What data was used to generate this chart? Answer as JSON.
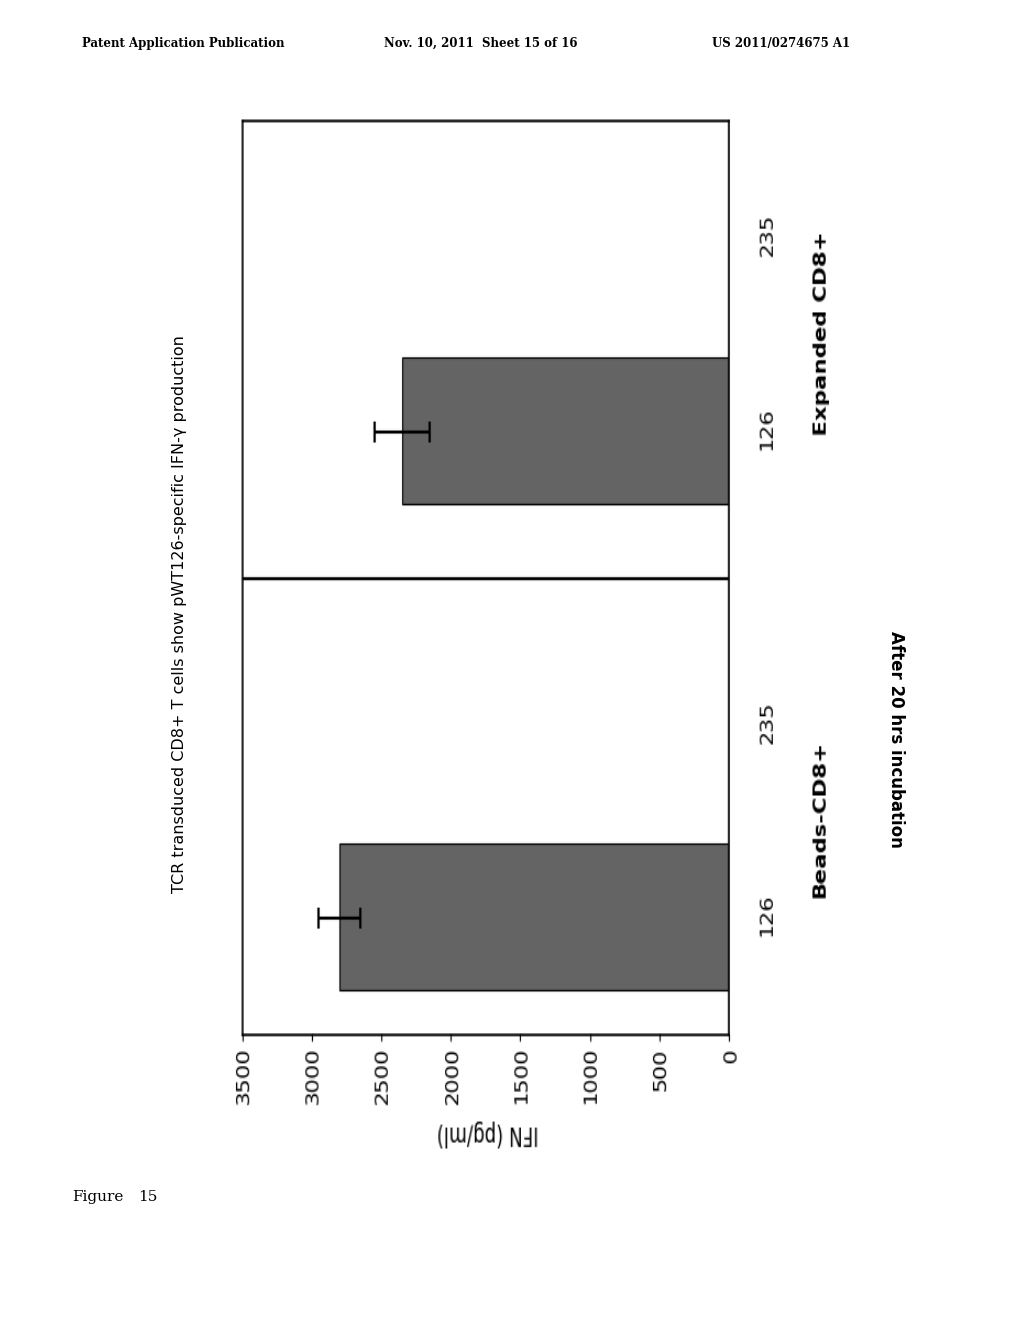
{
  "patent_header_left": "Patent Application Publication",
  "patent_header_mid": "Nov. 10, 2011  Sheet 15 of 16",
  "patent_header_right": "US 2011/0274675 A1",
  "figure_label": "Figure",
  "figure_num": "15",
  "title": "TCR transduced CD8+ T cells show pWT126-specific IFN-γ production",
  "ylabel": "IFN (pg/ml)",
  "bottom_label": "After 20 hrs incubation",
  "group1_label": "Beads-CD8+",
  "group2_label": "Expanded CD8+",
  "bar1_label": "126",
  "bar2_label": "235",
  "values": [
    2800,
    0,
    2350,
    0
  ],
  "errors": [
    150,
    0,
    200,
    0
  ],
  "bar_color": "#646464",
  "ylim_min": 0,
  "ylim_max": 3500,
  "yticks": [
    0,
    500,
    1000,
    1500,
    2000,
    2500,
    3000,
    3500
  ],
  "background_color": "#ffffff"
}
